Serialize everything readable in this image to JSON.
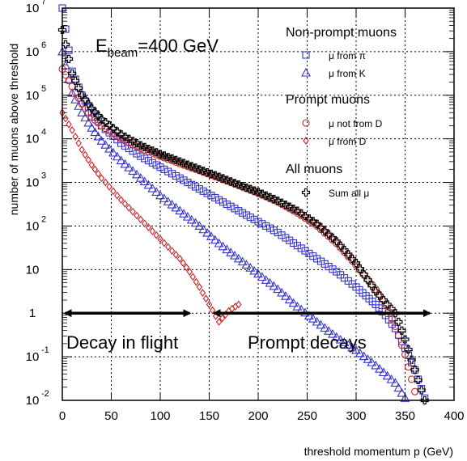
{
  "chart_data": {
    "type": "scatter",
    "xlabel": "threshold momentum p  (GeV)",
    "ylabel": "number of muons above threshold",
    "xlim": [
      0,
      400
    ],
    "ylim_log10": [
      -2,
      7
    ],
    "y_scale": "log",
    "grid": true,
    "x_ticks": [
      "0",
      "50",
      "100",
      "150",
      "200",
      "250",
      "300",
      "350",
      "400"
    ],
    "y_ticks": [
      {
        "base": "10",
        "exp": "-2"
      },
      {
        "base": "10",
        "exp": "-1"
      },
      {
        "base": "1",
        "exp": ""
      },
      {
        "base": "10",
        "exp": ""
      },
      {
        "base": "10",
        "exp": "2"
      },
      {
        "base": "10",
        "exp": "3"
      },
      {
        "base": "10",
        "exp": "4"
      },
      {
        "base": "10",
        "exp": "5"
      },
      {
        "base": "10",
        "exp": "6"
      },
      {
        "base": "10",
        "exp": "7"
      }
    ],
    "energy_label": {
      "prefix": "E",
      "subscript": "beam",
      "suffix": "=400 GeV"
    },
    "annotations": [
      "Decay in flight",
      "Prompt decays"
    ],
    "arrows": [
      {
        "from": 3,
        "to": 130
      },
      {
        "from": 155,
        "to": 375
      }
    ],
    "legend": {
      "position": "top-right",
      "groups": [
        {
          "title": "Non-prompt muons",
          "entries": [
            {
              "label": "μ from π",
              "marker": "square",
              "color": "#3333cc"
            },
            {
              "label": "μ from K",
              "marker": "triangle",
              "color": "#3333cc"
            }
          ]
        },
        {
          "title": "Prompt muons",
          "entries": [
            {
              "label": "μ not from D",
              "marker": "circle",
              "color": "#cc2222"
            },
            {
              "label": "μ from D",
              "marker": "diamond",
              "color": "#cc2222"
            }
          ]
        },
        {
          "title": "All muons",
          "entries": [
            {
              "label": "Sum all μ",
              "marker": "cross",
              "color": "#000000"
            }
          ]
        }
      ]
    },
    "series": [
      {
        "name": "μ from π",
        "marker": "square",
        "color": "#3333cc",
        "x": [
          0,
          10,
          20,
          30,
          40,
          60,
          80,
          100,
          120,
          140,
          160,
          180,
          200,
          220,
          240,
          260,
          280,
          300,
          310,
          320,
          330,
          340,
          350,
          360,
          370
        ],
        "log10_y": [
          7.0,
          5.55,
          5.0,
          4.6,
          4.3,
          3.9,
          3.6,
          3.35,
          3.1,
          2.85,
          2.6,
          2.35,
          2.1,
          1.85,
          1.55,
          1.25,
          0.95,
          0.6,
          0.4,
          0.2,
          -0.05,
          -0.35,
          -0.8,
          -1.3,
          -1.95
        ]
      },
      {
        "name": "μ from K",
        "marker": "triangle",
        "color": "#3333cc",
        "x": [
          0,
          10,
          20,
          30,
          40,
          60,
          80,
          100,
          120,
          140,
          160,
          180,
          200,
          220,
          240,
          260,
          280,
          300,
          320,
          340,
          350
        ],
        "log10_y": [
          6.0,
          5.05,
          4.6,
          4.25,
          3.95,
          3.5,
          3.1,
          2.7,
          2.35,
          2.0,
          1.6,
          1.25,
          0.9,
          0.55,
          0.15,
          -0.2,
          -0.55,
          -0.85,
          -1.2,
          -1.6,
          -1.95
        ]
      },
      {
        "name": "μ not from D",
        "marker": "circle",
        "color": "#cc2222",
        "x": [
          0,
          10,
          20,
          30,
          40,
          60,
          80,
          100,
          120,
          140,
          160,
          180,
          200,
          220,
          240,
          260,
          280,
          300,
          320,
          330,
          340,
          350,
          360
        ],
        "log10_y": [
          5.6,
          5.2,
          4.8,
          4.5,
          4.3,
          4.0,
          3.78,
          3.6,
          3.43,
          3.27,
          3.1,
          2.93,
          2.75,
          2.55,
          2.3,
          2.0,
          1.6,
          1.1,
          0.55,
          0.2,
          -0.3,
          -0.95,
          -1.8
        ]
      },
      {
        "name": "μ from D",
        "marker": "diamond",
        "color": "#cc2222",
        "x": [
          0,
          10,
          20,
          30,
          40,
          60,
          80,
          100,
          120,
          130,
          140,
          150,
          160,
          170,
          180
        ],
        "log10_y": [
          4.6,
          4.2,
          3.75,
          3.4,
          3.1,
          2.6,
          2.15,
          1.7,
          1.25,
          0.95,
          0.6,
          0.2,
          -0.2,
          0.05,
          0.2
        ]
      },
      {
        "name": "Sum all μ",
        "marker": "cross",
        "color": "#000000",
        "x": [
          0,
          10,
          20,
          30,
          40,
          60,
          80,
          100,
          120,
          140,
          160,
          180,
          200,
          220,
          240,
          260,
          280,
          300,
          320,
          340,
          350,
          360,
          370
        ],
        "log10_y": [
          6.5,
          5.5,
          5.0,
          4.7,
          4.45,
          4.1,
          3.85,
          3.65,
          3.48,
          3.3,
          3.13,
          2.95,
          2.78,
          2.58,
          2.35,
          2.05,
          1.65,
          1.15,
          0.5,
          0.0,
          -0.6,
          -1.3,
          -2.0
        ]
      }
    ]
  }
}
